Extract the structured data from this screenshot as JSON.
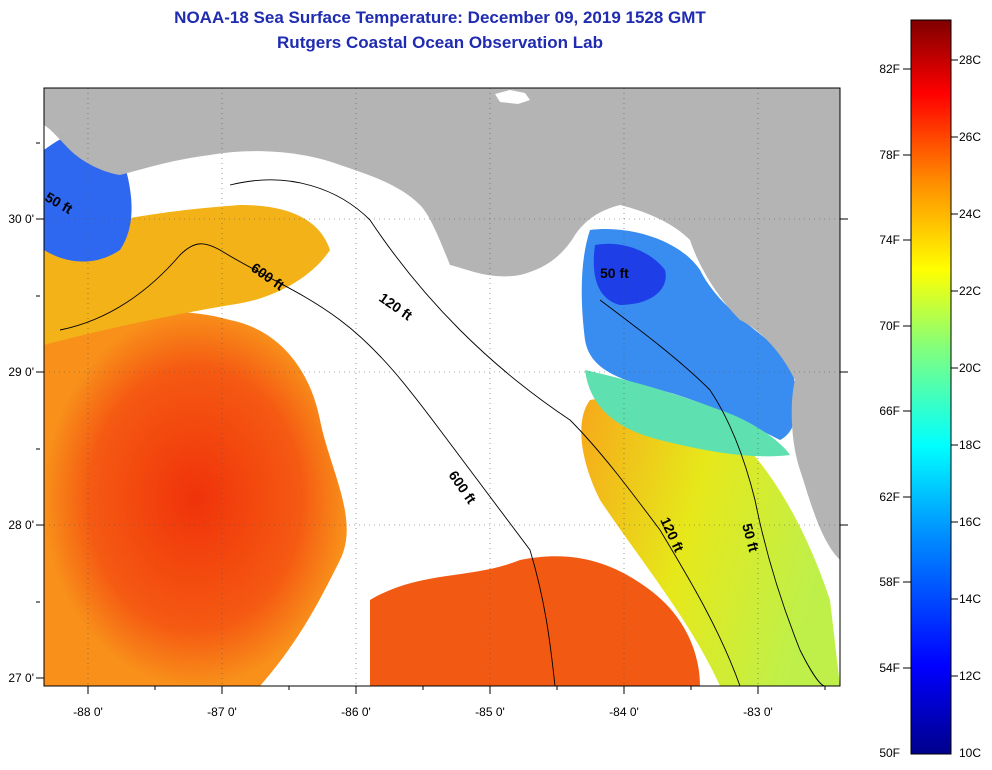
{
  "title": {
    "line1": "NOAA-18 Sea Surface Temperature:  December 09, 2019 1528 GMT",
    "line2": "Rutgers Coastal Ocean Observation Lab"
  },
  "map": {
    "lat_labels": [
      "30 0'",
      "29 0'",
      "28 0'",
      "27 0'"
    ],
    "lon_labels": [
      "-88 0'",
      "-87 0'",
      "-86 0'",
      "-85 0'",
      "-84 0'",
      "-83 0'"
    ],
    "contour_labels": [
      "50 ft",
      "600 ft",
      "120 ft",
      "50 ft",
      "600 ft",
      "120 ft",
      "50 ft"
    ],
    "colors": {
      "land": "#b4b4b4",
      "cloud": "#ffffff",
      "warm": "#f24a10",
      "cool": "#1a4cf0"
    }
  },
  "colorbar": {
    "fahrenheit": [
      "82F",
      "78F",
      "74F",
      "70F",
      "66F",
      "62F",
      "58F",
      "54F",
      "50F"
    ],
    "celsius": [
      "28C",
      "26C",
      "24C",
      "22C",
      "20C",
      "18C",
      "16C",
      "14C",
      "12C",
      "10C"
    ]
  }
}
